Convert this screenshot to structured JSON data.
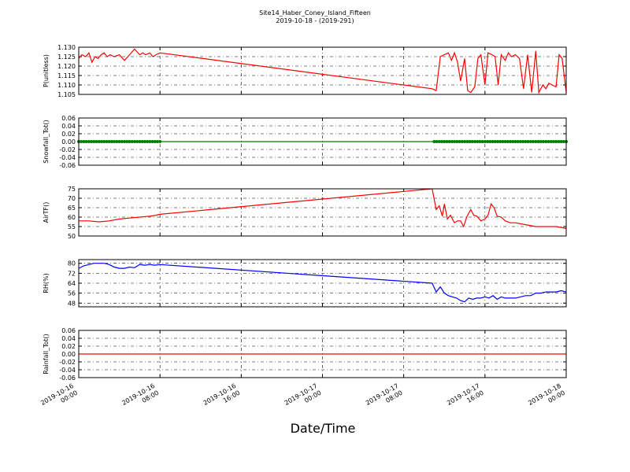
{
  "figure": {
    "title_line1": "Site14_Haber_Coney_Island_Fifteen",
    "title_line2": "2019-10-18 - (2019-291)",
    "xlabel": "Date/Time"
  },
  "chart_data": [
    {
      "type": "line",
      "ylabel": "P(unitless)",
      "ylim": [
        1.105,
        1.13
      ],
      "yticks": [
        "1.105",
        "1.110",
        "1.115",
        "1.120",
        "1.125",
        "1.130"
      ],
      "color": "#ff0000",
      "grid": true,
      "xlim_hours": [
        0,
        48
      ],
      "series": [
        {
          "x_hours": [
            0,
            0.3,
            0.7,
            1.0,
            1.3,
            1.6,
            1.9,
            2.2,
            2.5,
            2.8,
            3.1,
            3.5,
            4.0,
            4.5,
            5.0,
            5.5,
            6.0,
            6.3,
            6.6,
            7.0,
            7.3,
            7.6,
            8.0,
            34.8,
            35.2,
            35.6,
            36.0,
            36.4,
            36.7,
            37.0,
            37.3,
            37.6,
            38.0,
            38.3,
            38.6,
            39.0,
            39.3,
            39.6,
            40.0,
            40.3,
            40.7,
            41.0,
            41.3,
            41.6,
            42.0,
            42.3,
            42.6,
            43.0,
            43.4,
            43.8,
            44.2,
            44.6,
            45.0,
            45.3,
            45.7,
            46.0,
            46.3,
            46.6,
            47.0,
            47.3,
            47.6,
            48.0
          ],
          "values": [
            1.124,
            1.126,
            1.125,
            1.127,
            1.122,
            1.125,
            1.124,
            1.126,
            1.127,
            1.125,
            1.126,
            1.125,
            1.126,
            1.123,
            1.126,
            1.129,
            1.126,
            1.127,
            1.126,
            1.127,
            1.125,
            1.126,
            1.127,
            1.108,
            1.107,
            1.125,
            1.126,
            1.127,
            1.123,
            1.127,
            1.122,
            1.112,
            1.124,
            1.107,
            1.106,
            1.109,
            1.124,
            1.126,
            1.11,
            1.127,
            1.126,
            1.125,
            1.11,
            1.126,
            1.123,
            1.127,
            1.125,
            1.126,
            1.124,
            1.108,
            1.126,
            1.106,
            1.128,
            1.106,
            1.11,
            1.108,
            1.111,
            1.11,
            1.109,
            1.126,
            1.124,
            1.106
          ]
        }
      ]
    },
    {
      "type": "line",
      "ylabel": "Snowfall_Tot()",
      "ylim": [
        -0.06,
        0.06
      ],
      "yticks": [
        "-0.06",
        "-0.04",
        "-0.02",
        "0.00",
        "0.02",
        "0.04",
        "0.06"
      ],
      "color": "#008000",
      "grid": true,
      "markers": true,
      "xlim_hours": [
        0,
        48
      ],
      "series": [
        {
          "x_hours": [
            0,
            8,
            35,
            48
          ],
          "values": [
            0,
            0,
            0,
            0
          ]
        }
      ],
      "marker_ranges_hours": [
        [
          0,
          8
        ],
        [
          35,
          48
        ]
      ]
    },
    {
      "type": "line",
      "ylabel": "AirTF()",
      "ylim": [
        50,
        75
      ],
      "yticks": [
        "50",
        "55",
        "60",
        "65",
        "70",
        "75"
      ],
      "color": "#ff0000",
      "grid": true,
      "xlim_hours": [
        0,
        48
      ],
      "series": [
        {
          "x_hours": [
            0,
            1,
            2,
            3,
            4,
            5,
            6,
            7,
            7.6,
            8.0,
            34.8,
            35.2,
            35.5,
            35.8,
            36.0,
            36.3,
            36.6,
            37.0,
            37.3,
            37.6,
            37.9,
            38.2,
            38.6,
            38.9,
            39.2,
            39.6,
            40.0,
            40.3,
            40.6,
            40.9,
            41.2,
            41.6,
            42.0,
            42.5,
            43.0,
            44.0,
            45.0,
            46.0,
            47.0,
            48.0
          ],
          "values": [
            58,
            58,
            57.5,
            58,
            59,
            59.5,
            60,
            60.5,
            61,
            61.5,
            75,
            64,
            66,
            60.5,
            67,
            59,
            61,
            57,
            58,
            58,
            55,
            60,
            64,
            61,
            60.5,
            58,
            59,
            61,
            67,
            65,
            60.5,
            60,
            58,
            57,
            57,
            56,
            55,
            55,
            55,
            54
          ]
        }
      ]
    },
    {
      "type": "line",
      "ylabel": "RH(%)",
      "ylim": [
        45,
        83
      ],
      "yticks": [
        "48",
        "56",
        "64",
        "72",
        "80"
      ],
      "color": "#0000ff",
      "grid": true,
      "xlim_hours": [
        0,
        48
      ],
      "series": [
        {
          "x_hours": [
            0,
            0.5,
            1,
            1.5,
            2,
            2.5,
            3,
            3.5,
            4,
            4.5,
            5,
            5.5,
            6,
            6.5,
            7,
            7.5,
            8.0,
            34.8,
            35.2,
            35.6,
            36.0,
            36.4,
            36.8,
            37.2,
            37.6,
            38.0,
            38.4,
            38.8,
            39.2,
            39.6,
            40.0,
            40.4,
            40.8,
            41.2,
            41.6,
            42.0,
            42.5,
            43.0,
            43.5,
            44.0,
            44.5,
            45.0,
            45.5,
            46.0,
            46.5,
            47.0,
            47.5,
            48.0
          ],
          "values": [
            76,
            78,
            79,
            80,
            80,
            80,
            79,
            77,
            76,
            76,
            77,
            76.5,
            79,
            78.5,
            79,
            78.5,
            79,
            64,
            57,
            61,
            56,
            54,
            53,
            52,
            50,
            49,
            52,
            51,
            52,
            52,
            53,
            52,
            54,
            51,
            53,
            52,
            52,
            52,
            53,
            54,
            54,
            56,
            56,
            57,
            57,
            57,
            58,
            57
          ]
        }
      ]
    },
    {
      "type": "line",
      "ylabel": "Rainfall_Tot()",
      "ylim": [
        -0.06,
        0.06
      ],
      "yticks": [
        "-0.06",
        "-0.04",
        "-0.02",
        "0.00",
        "0.02",
        "0.04",
        "0.06"
      ],
      "color": "#ff0000",
      "grid": true,
      "xlim_hours": [
        0,
        48
      ],
      "series": [
        {
          "x_hours": [
            0,
            48
          ],
          "values": [
            0,
            0
          ]
        }
      ]
    }
  ],
  "xticks": [
    {
      "hour": 0,
      "line1": "2019-10-16",
      "line2": "00:00"
    },
    {
      "hour": 8,
      "line1": "2019-10-16",
      "line2": "08:00"
    },
    {
      "hour": 16,
      "line1": "2019-10-16",
      "line2": "16:00"
    },
    {
      "hour": 24,
      "line1": "2019-10-17",
      "line2": "00:00"
    },
    {
      "hour": 32,
      "line1": "2019-10-17",
      "line2": "08:00"
    },
    {
      "hour": 40,
      "line1": "2019-10-17",
      "line2": "16:00"
    },
    {
      "hour": 48,
      "line1": "2019-10-18",
      "line2": "00:00"
    }
  ]
}
